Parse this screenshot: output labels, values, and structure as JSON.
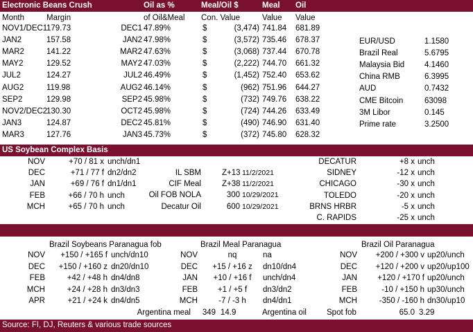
{
  "crush": {
    "title": "Electronic Beans Crush",
    "h_oil_pct": "Oil as %",
    "h_meal_oil": "Meal/Oil $",
    "h_meal": "Meal",
    "h_oil": "Oil",
    "h_month": "Month",
    "h_margin": "Margin",
    "h_of_oil_meal": "of Oil&Meal",
    "h_con_value": "Con. Value",
    "h_value1": "Value",
    "h_value2": "Value",
    "rows": [
      {
        "month": "NOV1/DEC1",
        "margin": "179.73",
        "m2": "DEC1",
        "pct": "47.89%",
        "dollar": "$",
        "con": "(3,474)",
        "meal": "741.84",
        "oil": "681.89"
      },
      {
        "month": "JAN2",
        "margin": "157.58",
        "m2": "JAN2",
        "pct": "47.98%",
        "dollar": "$",
        "con": "(3,572)",
        "meal": "735.46",
        "oil": "678.37"
      },
      {
        "month": "MAR2",
        "margin": "141.22",
        "m2": "MAR2",
        "pct": "47.63%",
        "dollar": "$",
        "con": "(3,068)",
        "meal": "737.44",
        "oil": "670.78"
      },
      {
        "month": "MAY2",
        "margin": "129.52",
        "m2": "MAY2",
        "pct": "47.03%",
        "dollar": "$",
        "con": "(2,222)",
        "meal": "744.70",
        "oil": "661.32"
      },
      {
        "month": "JUL2",
        "margin": "124.27",
        "m2": "JUL2",
        "pct": "46.49%",
        "dollar": "$",
        "con": "(1,452)",
        "meal": "752.40",
        "oil": "653.62"
      },
      {
        "month": "AUG2",
        "margin": "119.98",
        "m2": "AUG2",
        "pct": "46.14%",
        "dollar": "$",
        "con": "(962)",
        "meal": "751.96",
        "oil": "644.27"
      },
      {
        "month": "SEP2",
        "margin": "129.98",
        "m2": "SEP2",
        "pct": "45.98%",
        "dollar": "$",
        "con": "(732)",
        "meal": "749.76",
        "oil": "638.22"
      },
      {
        "month": "NOV2/DEC2",
        "margin": "130.30",
        "m2": "OCT2",
        "pct": "45.98%",
        "dollar": "$",
        "con": "(724)",
        "meal": "744.26",
        "oil": "633.49"
      },
      {
        "month": "JAN3",
        "margin": "124.87",
        "m2": "DEC2",
        "pct": "45.81%",
        "dollar": "$",
        "con": "(490)",
        "meal": "746.90",
        "oil": "631.40"
      },
      {
        "month": "MAR3",
        "margin": "127.76",
        "m2": "JAN3",
        "pct": "45.73%",
        "dollar": "$",
        "con": "(372)",
        "meal": "745.80",
        "oil": "628.32"
      }
    ],
    "rates": [
      {
        "label": "EUR/USD",
        "value": "1.1580"
      },
      {
        "label": "Brazil Real",
        "value": "5.6795"
      },
      {
        "label": "Malaysia Bid",
        "value": "4.1460"
      },
      {
        "label": "China RMB",
        "value": "6.3995"
      },
      {
        "label": "AUD",
        "value": "0.7432"
      },
      {
        "label": "CME Bitcoin",
        "value": "63098"
      },
      {
        "label": "3M Libor",
        "value": "0.145"
      },
      {
        "label": "Prime rate",
        "value": "3.2500"
      }
    ]
  },
  "basis": {
    "title": "US Soybean Complex Basis",
    "left": [
      {
        "m": "NOV",
        "v": "+70 / 81 x",
        "s": "unch/dn1"
      },
      {
        "m": "DEC",
        "v": "+71 / 77 f",
        "s": "dn2/dn2"
      },
      {
        "m": "JAN",
        "v": "+69 / 76 f",
        "s": "dn1/dn1"
      },
      {
        "m": "FEB",
        "v": "+66 / 70 h",
        "s": "unch"
      },
      {
        "m": "MCH",
        "v": "+65 / 70 h",
        "s": "unch"
      }
    ],
    "mid": [
      {
        "label": "IL SBM",
        "value": "Z+13",
        "date": "11/2/2021"
      },
      {
        "label": "CIF Meal",
        "value": "Z+38",
        "date": "11/2/2021"
      },
      {
        "label": "Oil FOB NOLA",
        "value": "300",
        "date": "10/29/2021"
      },
      {
        "label": "Decatur Oil",
        "value": "600",
        "date": "10/29/2021"
      }
    ],
    "right": [
      {
        "label": "DECATUR",
        "v": "+8 x",
        "s": "unch"
      },
      {
        "label": "SIDNEY",
        "v": "-12 x",
        "s": "unch"
      },
      {
        "label": "CHICAGO",
        "v": "-30 x",
        "s": "unch"
      },
      {
        "label": "TOLEDO",
        "v": "-20 x",
        "s": "unch"
      },
      {
        "label": "BRNS HRBR",
        "v": "-5 x",
        "s": "unch"
      },
      {
        "label": "C. RAPIDS",
        "v": "-25 x",
        "s": "unch"
      }
    ]
  },
  "brazil": {
    "soy_title": "Brazil Soybeans Paranagua fob",
    "meal_title": "Brazil Meal Paranagua",
    "oil_title": "Brazil Oil Paranagua",
    "soy": [
      {
        "m": "NOV",
        "v": "+150 / +165 f",
        "s": "unch/dn10"
      },
      {
        "m": "DEC",
        "v": "+150 / +160 z",
        "s": "dn20/dn10"
      },
      {
        "m": "FEB",
        "v": "+42 / +48 h",
        "s": "dn4/dn8"
      },
      {
        "m": "MCH",
        "v": "+24 / +28 h",
        "s": "dn3/dn3"
      },
      {
        "m": "APR",
        "v": "+21 / +24 k",
        "s": "dn4/dn5"
      }
    ],
    "meal": [
      {
        "m": "NOV",
        "v": "nq",
        "s": "na"
      },
      {
        "m": "DEC",
        "v": "+15 / +16 z",
        "s": "dn10/dn4"
      },
      {
        "m": "JAN",
        "v": "+10 / +16 f",
        "s": "unch/dn4"
      },
      {
        "m": "FEB",
        "v": "+1 / +5 f",
        "s": "dn3/dn2"
      },
      {
        "m": "MCH",
        "v": "-7 / -3 h",
        "s": "dn4/dn1"
      }
    ],
    "oil": [
      {
        "m": "NOV",
        "v": "+200 / +300 v",
        "s": "up20/unch"
      },
      {
        "m": "DEC",
        "v": "+120 / +200 v",
        "s": "up20/up100"
      },
      {
        "m": "JAN",
        "v": "+120 / +170 f",
        "s": "up20/unch"
      },
      {
        "m": "FEB",
        "v": "-10 / +150 h",
        "s": "up30/unch"
      },
      {
        "m": "MCH",
        "v": "-350 / -160 h",
        "s": "dn30/up10"
      }
    ],
    "arg_meal_label": "Argentina meal",
    "arg_meal_v1": "349",
    "arg_meal_v2": "14.9",
    "arg_oil_label": "Argentina oil",
    "spot_label": "Spot fob",
    "spot_v1": "65.0",
    "spot_v2": "3.29"
  },
  "source": "Source: FI, DJ, Reuters & various trade sources",
  "colors": {
    "header_bar": "#7a1030"
  }
}
